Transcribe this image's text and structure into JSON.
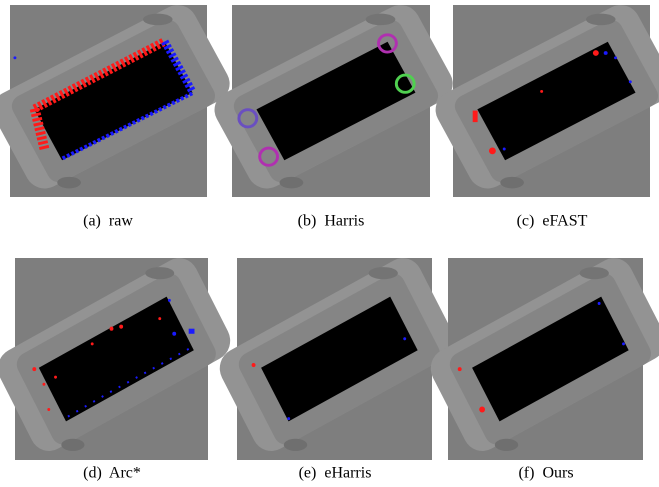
{
  "figure": {
    "panels": [
      {
        "caption": "(a)  raw"
      },
      {
        "caption": "(b)  Harris"
      },
      {
        "caption": "(c)  eFAST"
      },
      {
        "caption": "(d)  Arc*"
      },
      {
        "caption": "(e)  eHarris"
      },
      {
        "caption": "(f)  Ours"
      }
    ]
  }
}
